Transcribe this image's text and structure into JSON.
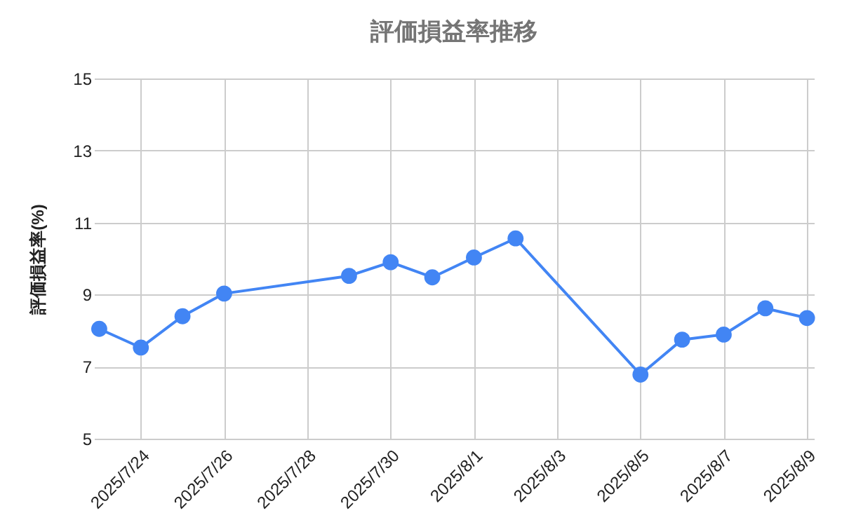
{
  "chart_data": {
    "type": "line",
    "title": "評価損益率推移",
    "ylabel": "評価損益率(%)",
    "x": [
      "2025-07-23",
      "2025-07-24",
      "2025-07-25",
      "2025-07-26",
      "2025-07-29",
      "2025-07-30",
      "2025-07-31",
      "2025-08-01",
      "2025-08-02",
      "2025-08-05",
      "2025-08-06",
      "2025-08-07",
      "2025-08-08",
      "2025-08-09"
    ],
    "series": [
      {
        "color": "#4285f4",
        "values": [
          8.05,
          7.53,
          8.4,
          9.03,
          9.52,
          9.9,
          9.48,
          10.03,
          10.56,
          6.78,
          7.75,
          7.89,
          8.62,
          8.35
        ]
      }
    ],
    "xlim": [
      "2025-07-22T21:00",
      "2025-08-09T04:00"
    ],
    "xticks": [
      {
        "value": "2025-07-24",
        "label": "2025/7/24"
      },
      {
        "value": "2025-07-26",
        "label": "2025/7/26"
      },
      {
        "value": "2025-07-28",
        "label": "2025/7/28"
      },
      {
        "value": "2025-07-30",
        "label": "2025/7/30"
      },
      {
        "value": "2025-08-01",
        "label": "2025/8/1"
      },
      {
        "value": "2025-08-03",
        "label": "2025/8/3"
      },
      {
        "value": "2025-08-05",
        "label": "2025/8/5"
      },
      {
        "value": "2025-08-07",
        "label": "2025/8/7"
      },
      {
        "value": "2025-08-09",
        "label": "2025/8/9"
      }
    ],
    "ylim": [
      5,
      15
    ],
    "yticks": [
      5,
      7,
      9,
      11,
      13,
      15
    ],
    "grid": true,
    "marker": "circle",
    "line_style": "solid"
  }
}
